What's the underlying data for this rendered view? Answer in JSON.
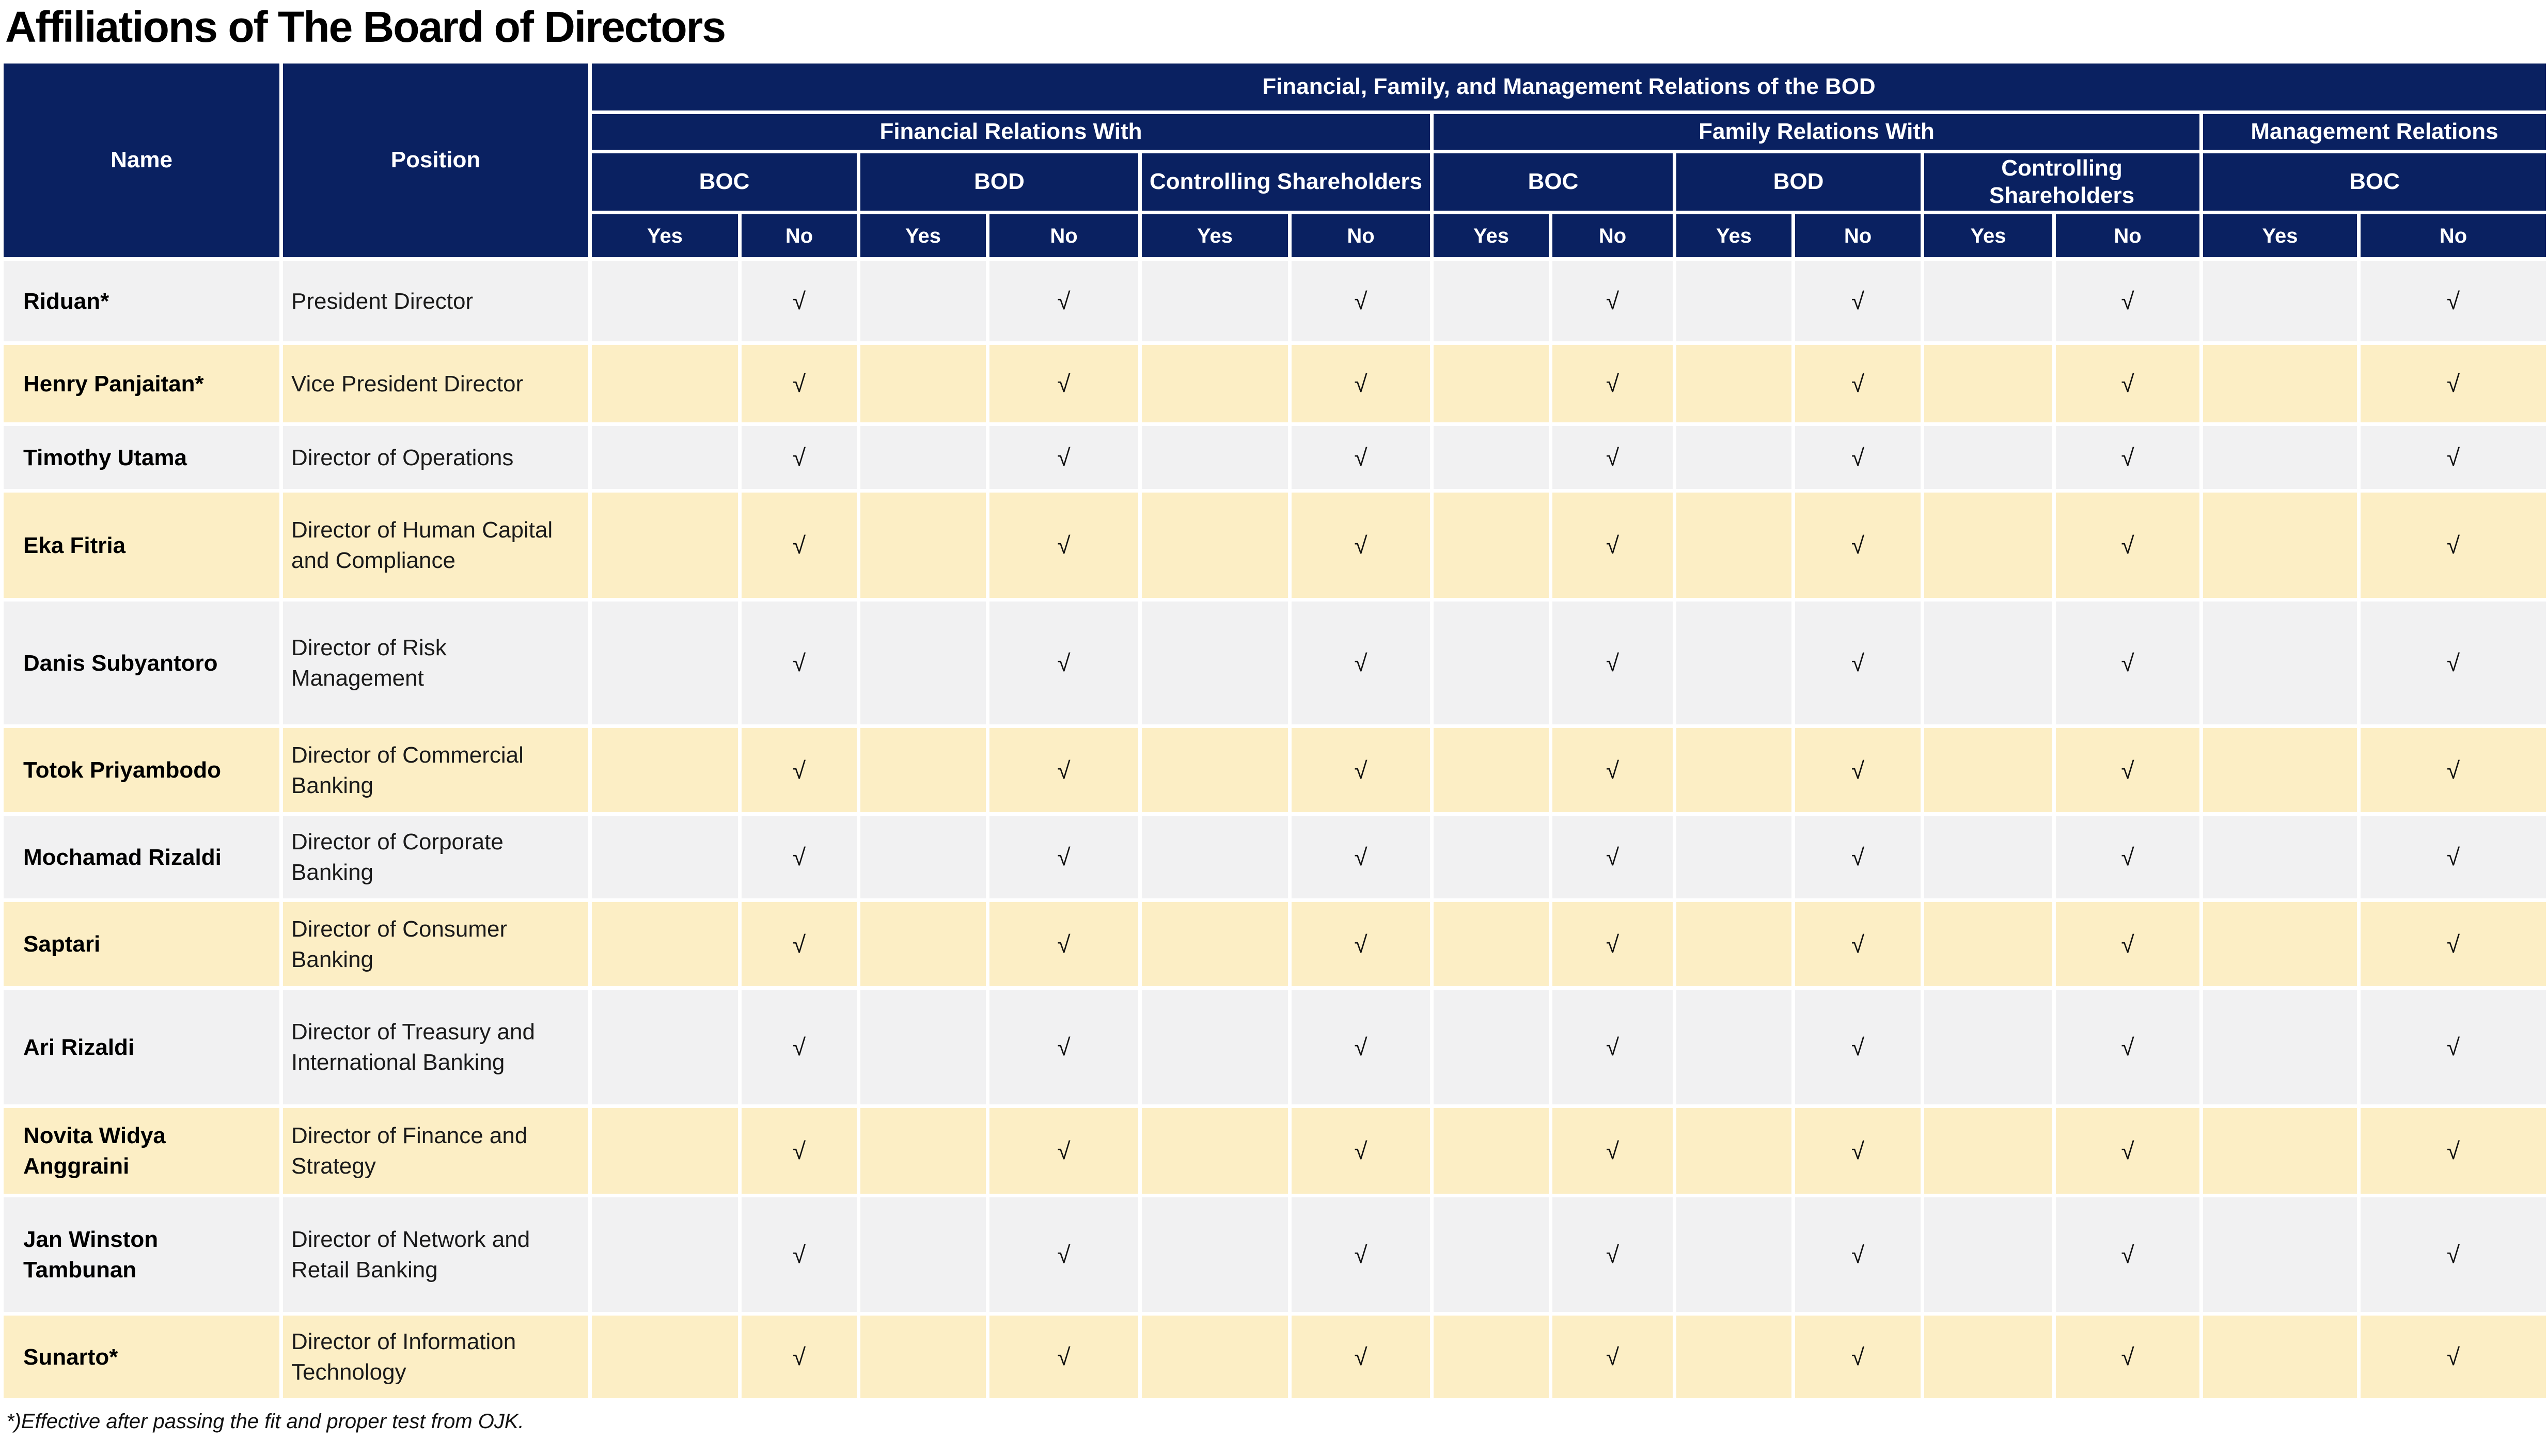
{
  "title": "Affiliations of The Board of Directors",
  "colors": {
    "header_bg": "#0a2161",
    "header_text": "#ffffff",
    "row_gray": "#f1f1f2",
    "row_cream": "#fceec5",
    "grid_line": "#ffffff"
  },
  "table": {
    "header": {
      "name_label": "Name",
      "position_label": "Position",
      "top_label": "Financial, Family, and Management Relations of the BOD",
      "groups": [
        {
          "label": "Financial Relations With",
          "subgroups": [
            "BOC",
            "BOD",
            "Controlling Shareholders"
          ]
        },
        {
          "label": "Family Relations With",
          "subgroups": [
            "BOC",
            "BOD",
            "Controlling Shareholders"
          ]
        },
        {
          "label": "Management Relations",
          "subgroups": [
            "BOC"
          ]
        }
      ],
      "yes_label": "Yes",
      "no_label": "No"
    },
    "check_mark": "√",
    "rows": [
      {
        "name": "Riduan*",
        "position": "President Director",
        "checks": [
          "",
          "√",
          "",
          "√",
          "",
          "√",
          "",
          "√",
          "",
          "√",
          "",
          "√",
          "",
          "√"
        ]
      },
      {
        "name": "Henry Panjaitan*",
        "position": "Vice President Director",
        "checks": [
          "",
          "√",
          "",
          "√",
          "",
          "√",
          "",
          "√",
          "",
          "√",
          "",
          "√",
          "",
          "√"
        ]
      },
      {
        "name": "Timothy Utama",
        "position": "Director of Operations",
        "checks": [
          "",
          "√",
          "",
          "√",
          "",
          "√",
          "",
          "√",
          "",
          "√",
          "",
          "√",
          "",
          "√"
        ]
      },
      {
        "name": "Eka Fitria",
        "position": "Director of Human Capital and Compliance",
        "checks": [
          "",
          "√",
          "",
          "√",
          "",
          "√",
          "",
          "√",
          "",
          "√",
          "",
          "√",
          "",
          "√"
        ]
      },
      {
        "name": "Danis Subyantoro",
        "position": "Director of Risk Management",
        "checks": [
          "",
          "√",
          "",
          "√",
          "",
          "√",
          "",
          "√",
          "",
          "√",
          "",
          "√",
          "",
          "√"
        ]
      },
      {
        "name": "Totok Priyambodo",
        "position": "Director of Commercial Banking",
        "checks": [
          "",
          "√",
          "",
          "√",
          "",
          "√",
          "",
          "√",
          "",
          "√",
          "",
          "√",
          "",
          "√"
        ]
      },
      {
        "name": "Mochamad Rizaldi",
        "position": "Director of Corporate Banking",
        "checks": [
          "",
          "√",
          "",
          "√",
          "",
          "√",
          "",
          "√",
          "",
          "√",
          "",
          "√",
          "",
          "√"
        ]
      },
      {
        "name": "Saptari",
        "position": "Director of Consumer Banking",
        "checks": [
          "",
          "√",
          "",
          "√",
          "",
          "√",
          "",
          "√",
          "",
          "√",
          "",
          "√",
          "",
          "√"
        ]
      },
      {
        "name": "Ari Rizaldi",
        "position": "Director of Treasury and International Banking",
        "checks": [
          "",
          "√",
          "",
          "√",
          "",
          "√",
          "",
          "√",
          "",
          "√",
          "",
          "√",
          "",
          "√"
        ]
      },
      {
        "name": "Novita Widya Anggraini",
        "position": "Director of Finance and Strategy",
        "checks": [
          "",
          "√",
          "",
          "√",
          "",
          "√",
          "",
          "√",
          "",
          "√",
          "",
          "√",
          "",
          "√"
        ]
      },
      {
        "name": "Jan Winston Tambunan",
        "position": "Director of Network and Retail Banking",
        "checks": [
          "",
          "√",
          "",
          "√",
          "",
          "√",
          "",
          "√",
          "",
          "√",
          "",
          "√",
          "",
          "√"
        ]
      },
      {
        "name": "Sunarto*",
        "position": "Director of Information Technology",
        "checks": [
          "",
          "√",
          "",
          "√",
          "",
          "√",
          "",
          "√",
          "",
          "√",
          "",
          "√",
          "",
          "√"
        ]
      }
    ]
  },
  "footnote": "*)Effective after passing the fit and proper test from OJK."
}
